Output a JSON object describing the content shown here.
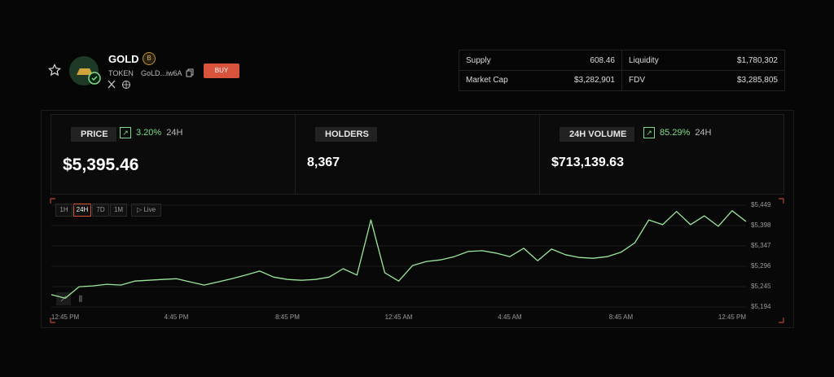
{
  "header": {
    "symbol": "GOLD",
    "badge": "B",
    "kind": "TOKEN",
    "address": "GoLD...iw6A",
    "buy": "BUY"
  },
  "stats_table": {
    "rows": [
      [
        {
          "label": "Supply",
          "value": "608.46"
        },
        {
          "label": "Liquidity",
          "value": "$1,780,302"
        }
      ],
      [
        {
          "label": "Market Cap",
          "value": "$3,282,901"
        },
        {
          "label": "FDV",
          "value": "$3,285,805"
        }
      ]
    ]
  },
  "cards": [
    {
      "label": "PRICE",
      "change": "3.20%",
      "period": "24H",
      "value": "$5,395.46"
    },
    {
      "label": "HOLDERS",
      "value": "8,367"
    },
    {
      "label": "24H VOLUME",
      "change": "85.29%",
      "period": "24H",
      "value": "$713,139.63"
    }
  ],
  "chart_controls": {
    "ranges": [
      "1H",
      "24H",
      "7D",
      "1M"
    ],
    "active": "24H",
    "live": "Live"
  },
  "chart_data": {
    "type": "line",
    "categories": [
      null,
      "12:45 PM",
      null,
      null,
      null,
      null,
      null,
      null,
      null,
      "4:45 PM",
      null,
      null,
      null,
      null,
      null,
      null,
      null,
      "8:45 PM",
      null,
      null,
      null,
      null,
      null,
      null,
      null,
      "12:45 AM",
      null,
      null,
      null,
      null,
      null,
      null,
      null,
      "4:45 AM",
      null,
      null,
      null,
      null,
      null,
      null,
      null,
      "8:45 AM",
      null,
      null,
      null,
      null,
      null,
      null,
      null,
      "12:45 PM",
      null
    ],
    "series": [
      {
        "name": "Price",
        "color": "#9be89b",
        "values": [
          5225,
          5216,
          5245,
          5247,
          5251,
          5249,
          5259,
          5261,
          5263,
          5265,
          5257,
          5249,
          5257,
          5265,
          5274,
          5284,
          5269,
          5263,
          5261,
          5263,
          5269,
          5290,
          5274,
          5412,
          5280,
          5259,
          5298,
          5308,
          5312,
          5320,
          5333,
          5335,
          5329,
          5320,
          5341,
          5310,
          5339,
          5325,
          5318,
          5316,
          5320,
          5331,
          5355,
          5412,
          5400,
          5433,
          5400,
          5422,
          5396,
          5435,
          5408
        ]
      }
    ],
    "ylim": [
      5178,
      5463
    ],
    "yticks": [
      {
        "value": 5194,
        "label": "$5,194"
      },
      {
        "value": 5245,
        "label": "$5,245"
      },
      {
        "value": 5296,
        "label": "$5,296"
      },
      {
        "value": 5347,
        "label": "$5,347"
      },
      {
        "value": 5398,
        "label": "$5,398"
      },
      {
        "value": 5449,
        "label": "$5,449"
      }
    ],
    "grid": true
  }
}
